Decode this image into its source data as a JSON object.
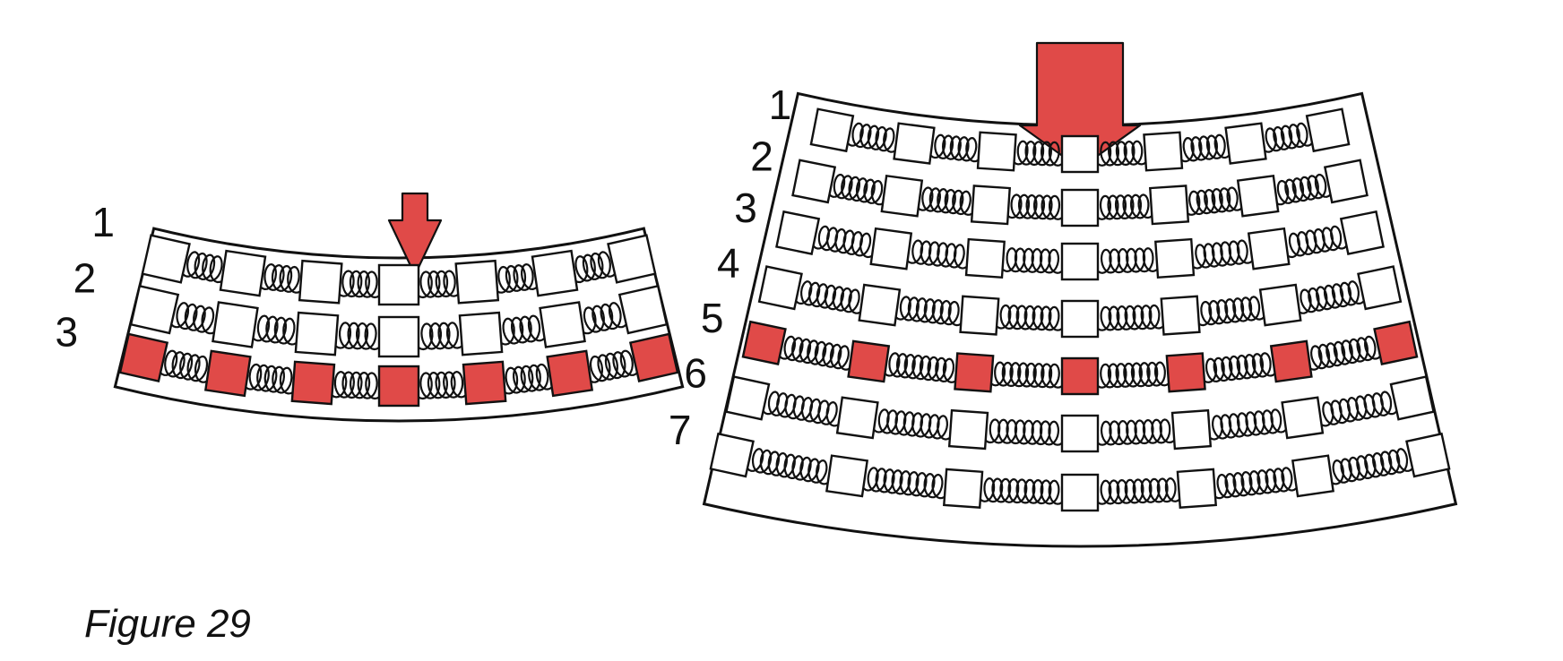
{
  "caption": "Figure 29",
  "colors": {
    "accent": "#e04a48",
    "ink": "#111111",
    "block": "#ffffff"
  },
  "panels": [
    {
      "name": "beam-3-layer",
      "row_labels": [
        "1",
        "2",
        "3"
      ],
      "highlighted_row": 2,
      "blocks_per_row": 7
    },
    {
      "name": "beam-7-layer",
      "row_labels": [
        "1",
        "2",
        "3",
        "4",
        "5",
        "6",
        "7"
      ],
      "highlighted_row": 4,
      "blocks_per_row": 7
    }
  ],
  "icons": {
    "arrow": "down-arrow-icon"
  }
}
